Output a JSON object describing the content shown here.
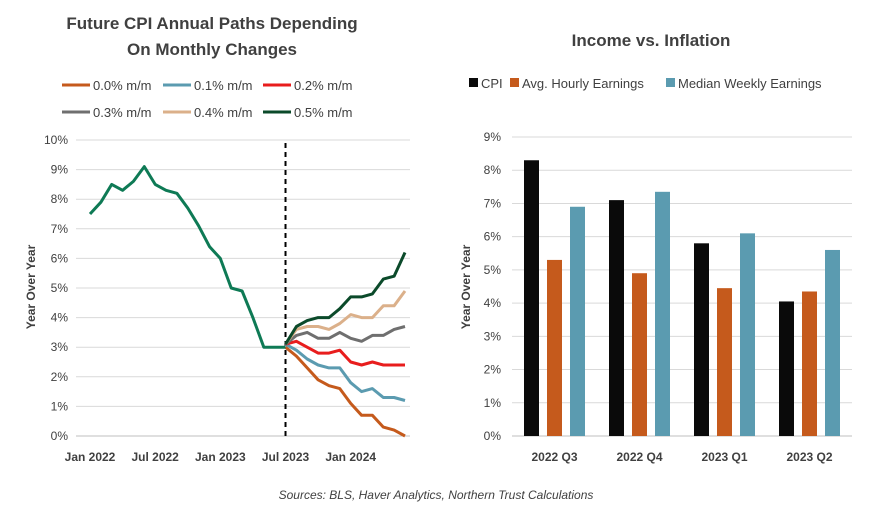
{
  "source_note": "Sources: BLS, Haver Analytics, Northern Trust Calculations",
  "chart_data": [
    {
      "type": "line",
      "title_line1": "Future CPI Annual Paths Depending",
      "title_line2": "On Monthly Changes",
      "ylabel": "Year Over Year",
      "ylim": [
        0,
        10
      ],
      "yticks": [
        "0%",
        "1%",
        "2%",
        "3%",
        "4%",
        "5%",
        "6%",
        "7%",
        "8%",
        "9%",
        "10%"
      ],
      "xticks": [
        {
          "label": "Jan 2022",
          "month": 0
        },
        {
          "label": "Jul 2022",
          "month": 6
        },
        {
          "label": "Jan 2023",
          "month": 12
        },
        {
          "label": "Jul 2023",
          "month": 18
        },
        {
          "label": "Jan 2024",
          "month": 24
        }
      ],
      "x_month_range": [
        0,
        29
      ],
      "divider_month": 18,
      "grid": true,
      "legend_position": "top",
      "history": {
        "name": "",
        "color": "#0e7a55",
        "x": [
          0,
          1,
          2,
          3,
          4,
          5,
          6,
          7,
          8,
          9,
          10,
          11,
          12,
          13,
          14,
          15,
          16,
          17,
          18
        ],
        "values": [
          7.5,
          7.9,
          8.5,
          8.3,
          8.6,
          9.1,
          8.5,
          8.3,
          8.2,
          7.7,
          7.1,
          6.4,
          6.0,
          5.0,
          4.9,
          4.0,
          3.0,
          3.0,
          3.0
        ]
      },
      "series": [
        {
          "name": "0.0% m/m",
          "color": "#c55a1c",
          "x": [
            18,
            19,
            20,
            21,
            22,
            23,
            24,
            25,
            26,
            27,
            28,
            29
          ],
          "values": [
            3.0,
            2.7,
            2.3,
            1.9,
            1.7,
            1.6,
            1.1,
            0.7,
            0.7,
            0.3,
            0.2,
            0.0
          ]
        },
        {
          "name": "0.1% m/m",
          "color": "#5b9bb0",
          "x": [
            18,
            19,
            20,
            21,
            22,
            23,
            24,
            25,
            26,
            27,
            28,
            29
          ],
          "values": [
            3.1,
            2.9,
            2.6,
            2.4,
            2.3,
            2.3,
            1.8,
            1.5,
            1.6,
            1.3,
            1.3,
            1.2
          ]
        },
        {
          "name": "0.2% m/m",
          "color": "#e81d1d",
          "x": [
            18,
            19,
            20,
            21,
            22,
            23,
            24,
            25,
            26,
            27,
            28,
            29
          ],
          "values": [
            3.1,
            3.2,
            3.0,
            2.8,
            2.8,
            2.9,
            2.5,
            2.4,
            2.5,
            2.4,
            2.4,
            2.4
          ]
        },
        {
          "name": "0.3% m/m",
          "color": "#6f6f6f",
          "x": [
            18,
            19,
            20,
            21,
            22,
            23,
            24,
            25,
            26,
            27,
            28,
            29
          ],
          "values": [
            3.1,
            3.4,
            3.5,
            3.3,
            3.3,
            3.5,
            3.3,
            3.2,
            3.4,
            3.4,
            3.6,
            3.7
          ]
        },
        {
          "name": "0.4% m/m",
          "color": "#dbb08a",
          "x": [
            18,
            19,
            20,
            21,
            22,
            23,
            24,
            25,
            26,
            27,
            28,
            29
          ],
          "values": [
            3.1,
            3.6,
            3.7,
            3.7,
            3.6,
            3.8,
            4.1,
            4.0,
            4.0,
            4.4,
            4.4,
            4.9
          ]
        },
        {
          "name": "0.5% m/m",
          "color": "#0b4a2a",
          "x": [
            18,
            19,
            20,
            21,
            22,
            23,
            24,
            25,
            26,
            27,
            28,
            29
          ],
          "values": [
            3.1,
            3.7,
            3.9,
            4.0,
            4.0,
            4.3,
            4.7,
            4.7,
            4.8,
            5.3,
            5.4,
            6.2
          ]
        }
      ]
    },
    {
      "type": "bar",
      "title": "Income vs. Inflation",
      "ylabel": "Year Over Year",
      "ylim": [
        0,
        9
      ],
      "yticks": [
        "0%",
        "1%",
        "2%",
        "3%",
        "4%",
        "5%",
        "6%",
        "7%",
        "8%",
        "9%"
      ],
      "categories": [
        "2022 Q3",
        "2022 Q4",
        "2023 Q1",
        "2023 Q2"
      ],
      "grid": true,
      "legend_position": "top",
      "series": [
        {
          "name": "CPI",
          "color": "#0a0a0a",
          "values": [
            8.3,
            7.1,
            5.8,
            4.05
          ]
        },
        {
          "name": "Avg. Hourly Earnings",
          "color": "#c55a1c",
          "values": [
            5.3,
            4.9,
            4.45,
            4.35
          ]
        },
        {
          "name": "Median Weekly Earnings",
          "color": "#5b9bb0",
          "values": [
            6.9,
            7.35,
            6.1,
            5.6
          ]
        }
      ]
    }
  ]
}
